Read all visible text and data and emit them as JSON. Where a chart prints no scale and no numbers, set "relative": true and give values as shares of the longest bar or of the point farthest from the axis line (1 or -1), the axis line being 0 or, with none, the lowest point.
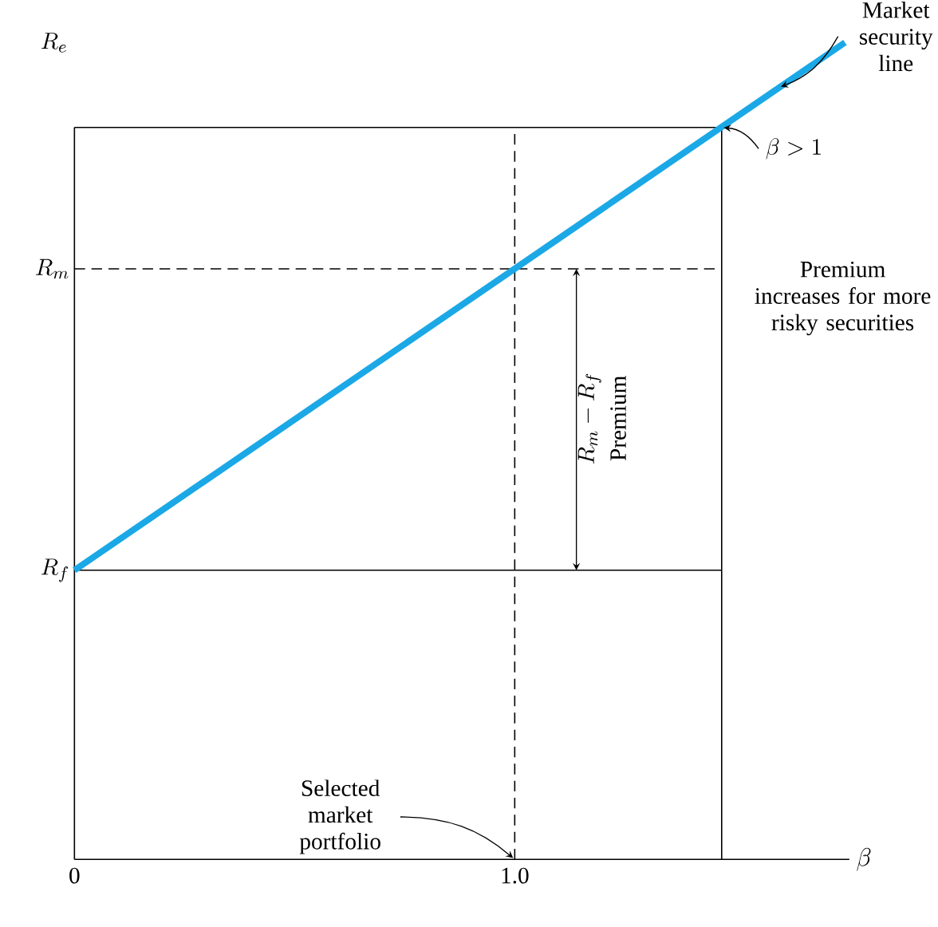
{
  "chart_data": {
    "type": "line",
    "relative": true,
    "xlabel": "\\beta",
    "ylabel": "R_e",
    "x": [
      0,
      1.75
    ],
    "xlim": [
      0,
      1.76
    ],
    "xticks": [
      0,
      {
        "value": 1,
        "label": "1.0"
      }
    ],
    "series": [
      {
        "color": "#1ba8e6",
        "values": [
          0.354,
          1.0
        ]
      }
    ],
    "ref_lines": [
      {
        "axis": "y",
        "value": 0.723,
        "label": "R_m",
        "line_style": "dashed"
      },
      {
        "axis": "y",
        "value": 0.354,
        "label": "R_f"
      },
      {
        "axis": "y",
        "value": 0.896
      },
      {
        "axis": "x",
        "value": 1.0,
        "line_style": "dashed"
      },
      {
        "axis": "x",
        "value": 1.47
      }
    ],
    "annotations": [
      {
        "text": "Market security line",
        "x": 1.6,
        "y": 0.945
      },
      {
        "text": "\\beta > 1",
        "x": 1.47,
        "y": 0.896
      },
      "Premium increases for more risky securities",
      "R_m - R_f",
      "Premium",
      {
        "text": "Selected market portfolio",
        "x": 1.0,
        "y": 0.0
      }
    ]
  }
}
